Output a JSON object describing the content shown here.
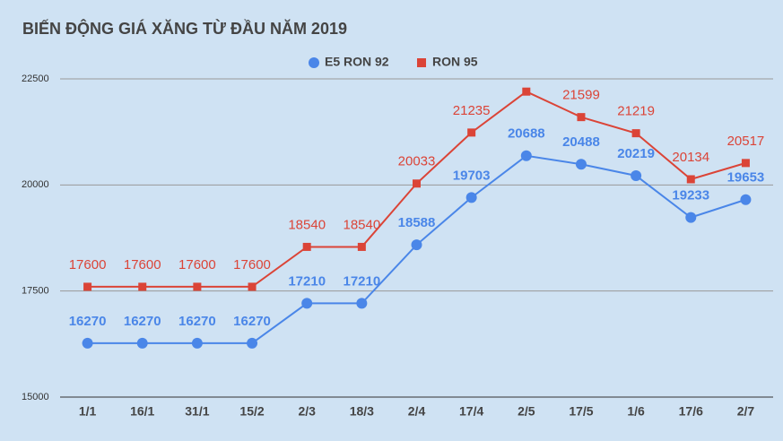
{
  "chart_data": {
    "type": "line",
    "title": "BIẾN ĐỘNG GIÁ XĂNG TỪ ĐẦU NĂM 2019",
    "categories": [
      "1/1",
      "16/1",
      "31/1",
      "15/2",
      "2/3",
      "18/3",
      "2/4",
      "17/4",
      "2/5",
      "17/5",
      "1/6",
      "17/6",
      "2/7"
    ],
    "series": [
      {
        "name": "E5 RON 92",
        "color": "#4a86e8",
        "marker": "circle",
        "values": [
          16270,
          16270,
          16270,
          16270,
          17210,
          17210,
          18588,
          19703,
          20688,
          20488,
          20219,
          19233,
          19653
        ]
      },
      {
        "name": "RON 95",
        "color": "#db4437",
        "marker": "square",
        "values": [
          17600,
          17600,
          17600,
          17600,
          18540,
          18540,
          20033,
          21235,
          22200,
          21599,
          21219,
          20134,
          20517
        ],
        "value_labels": [
          "17600",
          "17600",
          "17600",
          "17600",
          "18540",
          "18540",
          "20033",
          "21235",
          null,
          "21599",
          "21219",
          "20134",
          "20517"
        ]
      }
    ],
    "ylim": [
      15000,
      22500
    ],
    "yticks": [
      15000,
      17500,
      20000,
      22500
    ],
    "grid": true,
    "legend": "top"
  }
}
